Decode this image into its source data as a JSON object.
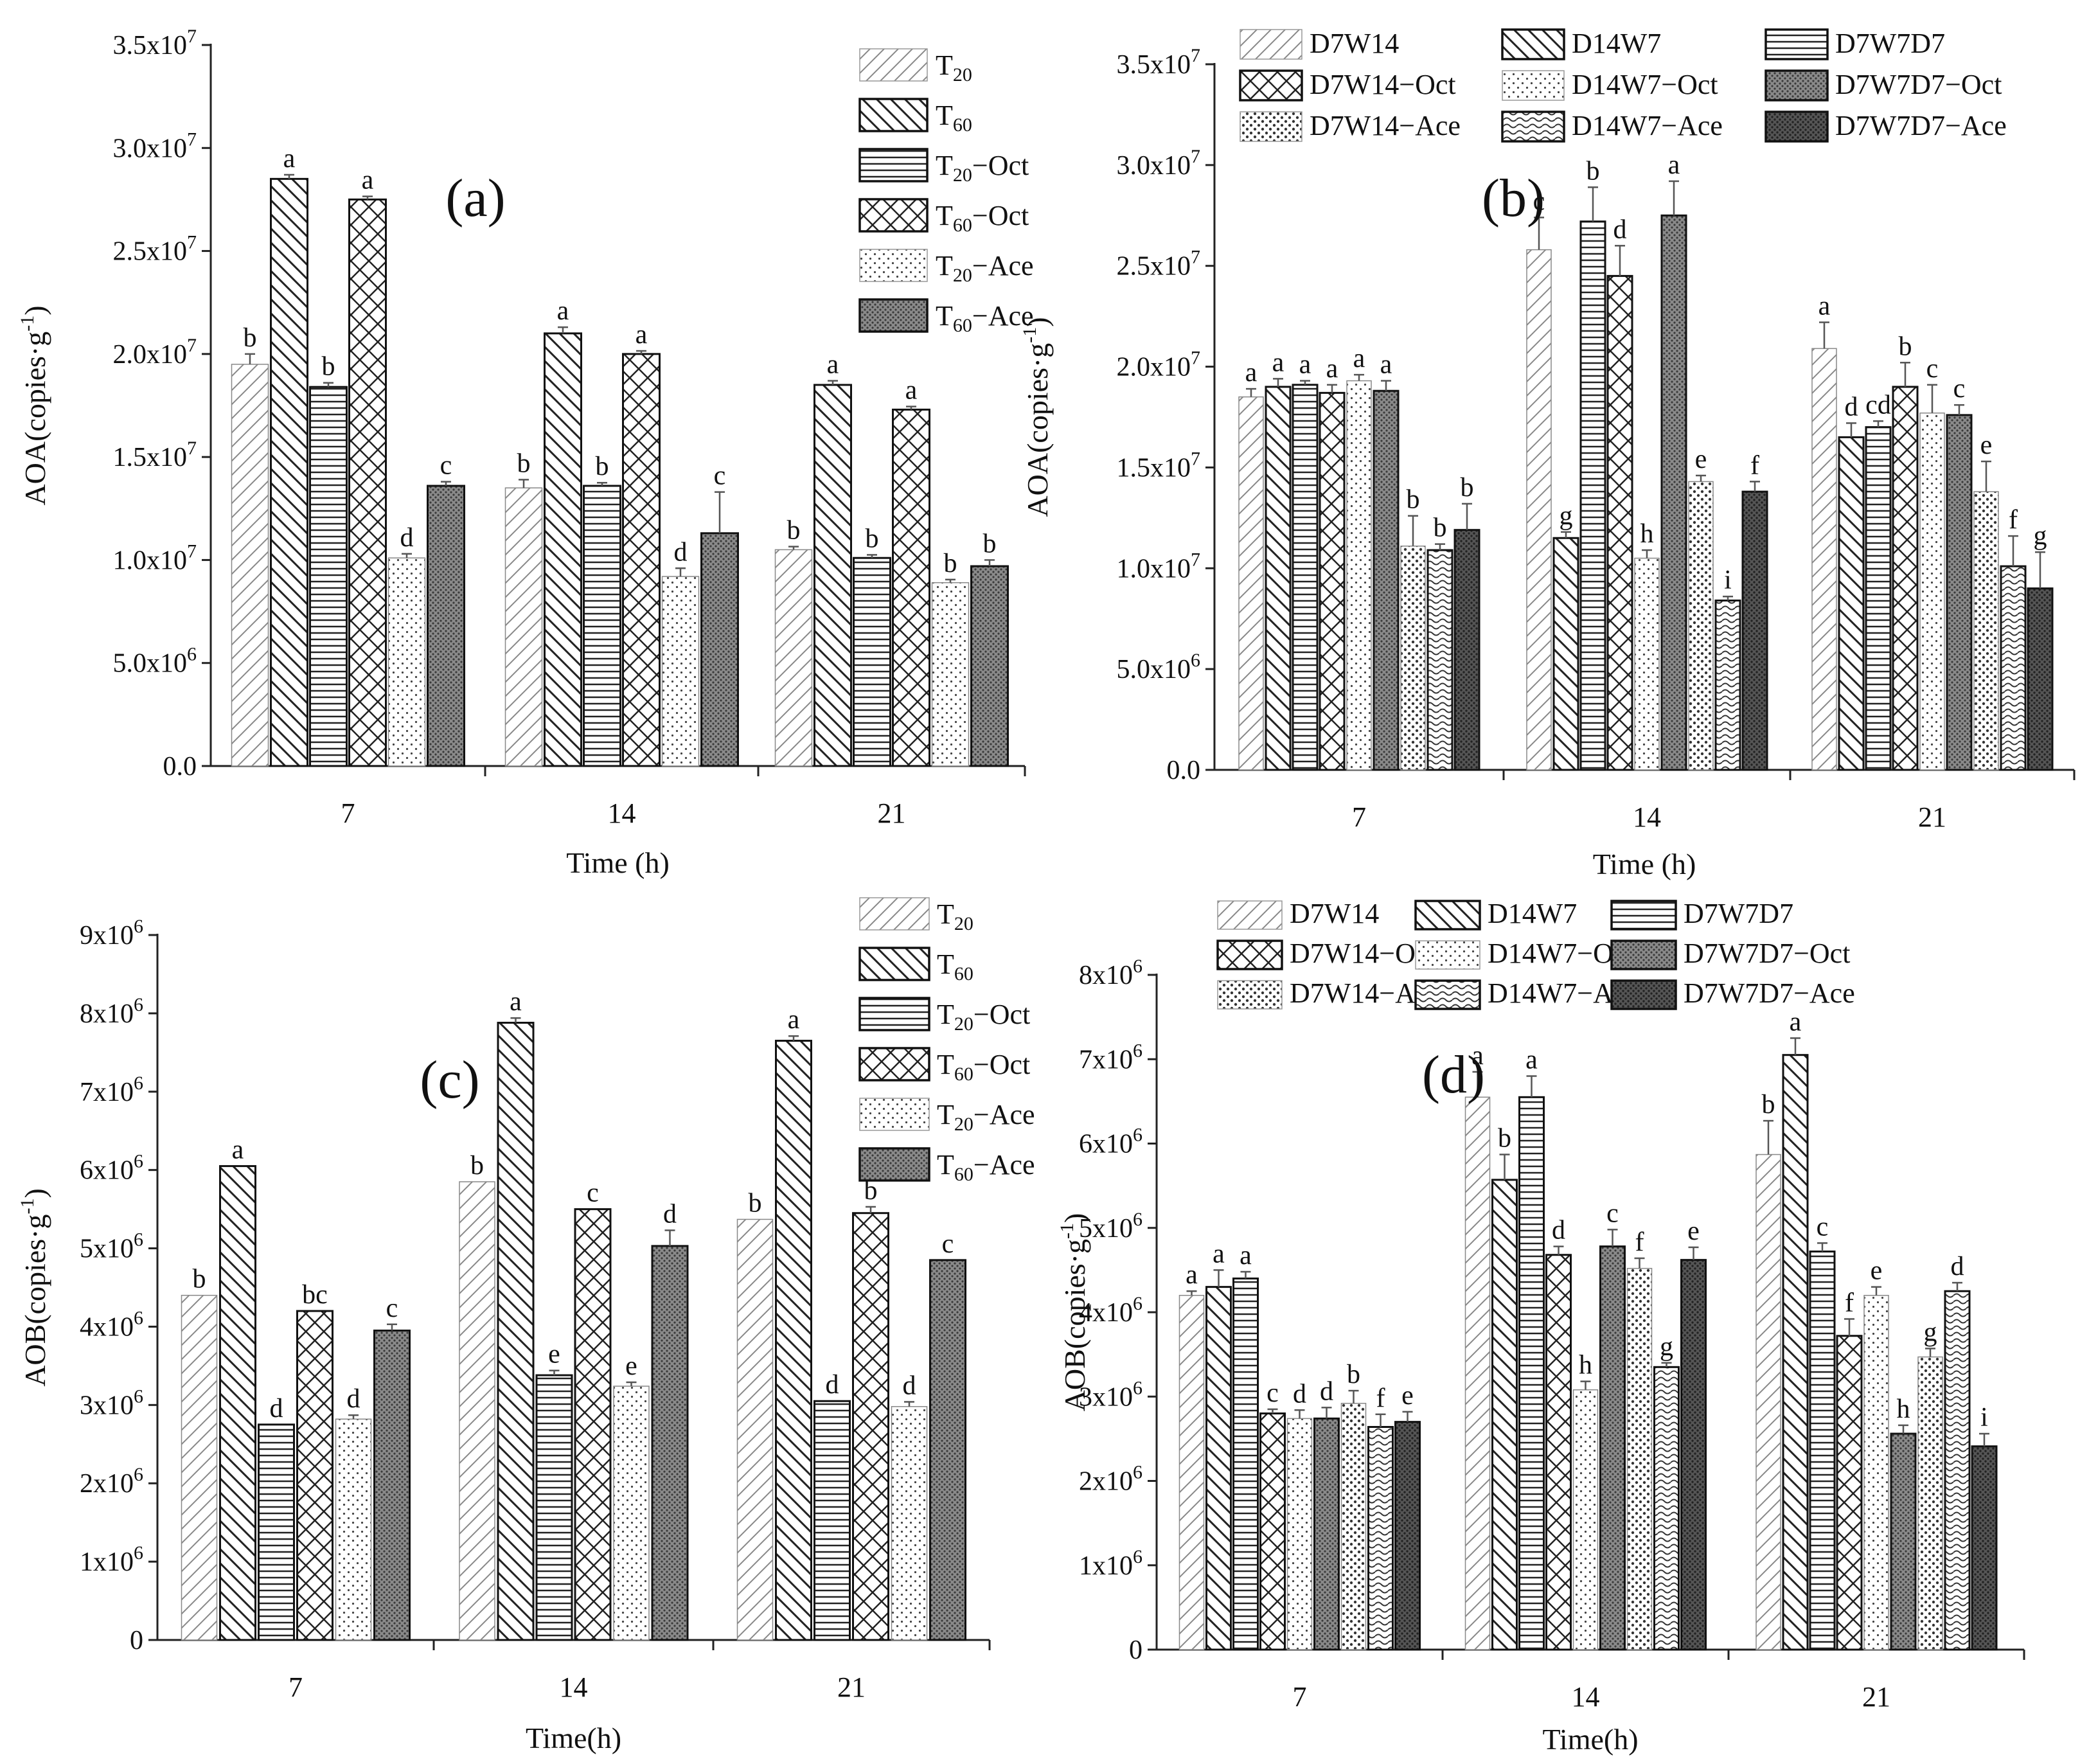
{
  "chart_data": [
    {
      "id": "a",
      "type": "bar",
      "panel_label": "(a)",
      "xlabel": "Time (h)",
      "ylabel": "AOA(copies·g⁻¹)",
      "ylim": [
        0,
        35000000
      ],
      "yticks": [
        {
          "v": 0,
          "base": "0.0",
          "exp": ""
        },
        {
          "v": 5000000,
          "base": "5.0x10",
          "exp": "6"
        },
        {
          "v": 10000000,
          "base": "1.0x10",
          "exp": "7"
        },
        {
          "v": 15000000,
          "base": "1.5x10",
          "exp": "7"
        },
        {
          "v": 20000000,
          "base": "2.0x10",
          "exp": "7"
        },
        {
          "v": 25000000,
          "base": "2.5x10",
          "exp": "7"
        },
        {
          "v": 30000000,
          "base": "3.0x10",
          "exp": "7"
        },
        {
          "v": 35000000,
          "base": "3.5x10",
          "exp": "7"
        }
      ],
      "categories": [
        "7",
        "14",
        "21"
      ],
      "legend_position": "top-right",
      "series": [
        {
          "name": "T20",
          "label_base": "T",
          "label_sub": "20",
          "label_suffix": "",
          "pattern": "hatch-light",
          "values": [
            19500000,
            13500000,
            10500000
          ],
          "errors": [
            500000,
            400000,
            150000
          ],
          "letters": [
            "b",
            "b",
            "b"
          ]
        },
        {
          "name": "T60",
          "label_base": "T",
          "label_sub": "60",
          "label_suffix": "",
          "pattern": "back-diag",
          "values": [
            28500000,
            21000000,
            18500000
          ],
          "errors": [
            200000,
            300000,
            200000
          ],
          "letters": [
            "a",
            "a",
            "a"
          ]
        },
        {
          "name": "T20-Oct",
          "label_base": "T",
          "label_sub": "20",
          "label_suffix": "−Oct",
          "pattern": "horizontal",
          "values": [
            18400000,
            13600000,
            10100000
          ],
          "errors": [
            200000,
            150000,
            150000
          ],
          "letters": [
            "b",
            "b",
            "b"
          ]
        },
        {
          "name": "T60-Oct",
          "label_base": "T",
          "label_sub": "60",
          "label_suffix": "−Oct",
          "pattern": "crosshatch",
          "values": [
            27500000,
            20000000,
            17300000
          ],
          "errors": [
            150000,
            150000,
            150000
          ],
          "letters": [
            "a",
            "a",
            "a"
          ]
        },
        {
          "name": "T20-Ace",
          "label_base": "T",
          "label_sub": "20",
          "label_suffix": "−Ace",
          "pattern": "dots",
          "values": [
            10100000,
            9200000,
            8900000
          ],
          "errors": [
            200000,
            400000,
            150000
          ],
          "letters": [
            "d",
            "d",
            "b"
          ]
        },
        {
          "name": "T60-Ace",
          "label_base": "T",
          "label_sub": "60",
          "label_suffix": "−Ace",
          "pattern": "dense",
          "values": [
            13600000,
            11300000,
            9700000
          ],
          "errors": [
            200000,
            2000000,
            300000
          ],
          "letters": [
            "c",
            "c",
            "b"
          ]
        }
      ]
    },
    {
      "id": "b",
      "type": "bar",
      "panel_label": "(b)",
      "xlabel": "Time (h)",
      "ylabel": "AOA(copies·g⁻¹)",
      "ylim": [
        0,
        35000000
      ],
      "yticks": [
        {
          "v": 0,
          "base": "0.0",
          "exp": ""
        },
        {
          "v": 5000000,
          "base": "5.0x10",
          "exp": "6"
        },
        {
          "v": 10000000,
          "base": "1.0x10",
          "exp": "7"
        },
        {
          "v": 15000000,
          "base": "1.5x10",
          "exp": "7"
        },
        {
          "v": 20000000,
          "base": "2.0x10",
          "exp": "7"
        },
        {
          "v": 25000000,
          "base": "2.5x10",
          "exp": "7"
        },
        {
          "v": 30000000,
          "base": "3.0x10",
          "exp": "7"
        },
        {
          "v": 35000000,
          "base": "3.5x10",
          "exp": "7"
        }
      ],
      "categories": [
        "7",
        "14",
        "21"
      ],
      "legend_position": "top",
      "series": [
        {
          "name": "D7W14",
          "pattern": "hatch-light",
          "values": [
            18500000,
            25800000,
            20900000
          ],
          "errors": [
            400000,
            1600000,
            1300000
          ],
          "letters": [
            "a",
            "c",
            "a"
          ]
        },
        {
          "name": "D14W7",
          "pattern": "back-diag",
          "values": [
            19000000,
            11500000,
            16500000
          ],
          "errors": [
            400000,
            300000,
            700000
          ],
          "letters": [
            "a",
            "g",
            "d"
          ]
        },
        {
          "name": "D7W7D7",
          "pattern": "horizontal",
          "values": [
            19100000,
            27200000,
            17000000
          ],
          "errors": [
            200000,
            1700000,
            300000
          ],
          "letters": [
            "a",
            "b",
            "cd"
          ]
        },
        {
          "name": "D7W14-Oct",
          "pattern": "crosshatch",
          "values": [
            18700000,
            24500000,
            19000000
          ],
          "errors": [
            400000,
            1500000,
            1200000
          ],
          "letters": [
            "a",
            "d",
            "b"
          ]
        },
        {
          "name": "D14W7-Oct",
          "pattern": "dots",
          "values": [
            19300000,
            10500000,
            17700000
          ],
          "errors": [
            300000,
            400000,
            1400000
          ],
          "letters": [
            "a",
            "h",
            "c"
          ]
        },
        {
          "name": "D7W7D7-Oct",
          "pattern": "dense",
          "values": [
            18800000,
            27500000,
            17600000
          ],
          "errors": [
            500000,
            1700000,
            500000
          ],
          "letters": [
            "a",
            "a",
            "c"
          ]
        },
        {
          "name": "D7W14-Ace",
          "pattern": "dots-coarse",
          "values": [
            11100000,
            14300000,
            13800000
          ],
          "errors": [
            1500000,
            300000,
            1500000
          ],
          "letters": [
            "b",
            "e",
            "e"
          ]
        },
        {
          "name": "D14W7-Ace",
          "pattern": "waves",
          "values": [
            10900000,
            8400000,
            10100000
          ],
          "errors": [
            300000,
            200000,
            1500000
          ],
          "letters": [
            "b",
            "i",
            "f"
          ]
        },
        {
          "name": "D7W7D7-Ace",
          "pattern": "dark",
          "values": [
            11900000,
            13800000,
            9000000
          ],
          "errors": [
            1300000,
            500000,
            1800000
          ],
          "letters": [
            "b",
            "f",
            "g"
          ]
        }
      ]
    },
    {
      "id": "c",
      "type": "bar",
      "panel_label": "(c)",
      "xlabel": "Time(h)",
      "ylabel": "AOB(copies·g⁻¹)",
      "ylim": [
        0,
        9000000
      ],
      "yticks": [
        {
          "v": 0,
          "base": "0",
          "exp": ""
        },
        {
          "v": 1000000,
          "base": "1x10",
          "exp": "6"
        },
        {
          "v": 2000000,
          "base": "2x10",
          "exp": "6"
        },
        {
          "v": 3000000,
          "base": "3x10",
          "exp": "6"
        },
        {
          "v": 4000000,
          "base": "4x10",
          "exp": "6"
        },
        {
          "v": 5000000,
          "base": "5x10",
          "exp": "6"
        },
        {
          "v": 6000000,
          "base": "6x10",
          "exp": "6"
        },
        {
          "v": 7000000,
          "base": "7x10",
          "exp": "6"
        },
        {
          "v": 8000000,
          "base": "8x10",
          "exp": "6"
        },
        {
          "v": 9000000,
          "base": "9x10",
          "exp": "6"
        }
      ],
      "categories": [
        "7",
        "14",
        "21"
      ],
      "legend_position": "top-right",
      "series": [
        {
          "name": "T20",
          "label_base": "T",
          "label_sub": "20",
          "label_suffix": "",
          "pattern": "hatch-light",
          "values": [
            4400000,
            5850000,
            5370000
          ],
          "errors": [
            0,
            0,
            0
          ],
          "letters": [
            "b",
            "b",
            "b"
          ]
        },
        {
          "name": "T60",
          "label_base": "T",
          "label_sub": "60",
          "label_suffix": "",
          "pattern": "back-diag",
          "values": [
            6050000,
            7880000,
            7650000
          ],
          "errors": [
            0,
            60000,
            60000
          ],
          "letters": [
            "a",
            "a",
            "a"
          ]
        },
        {
          "name": "T20-Oct",
          "label_base": "T",
          "label_sub": "20",
          "label_suffix": "−Oct",
          "pattern": "horizontal",
          "values": [
            2750000,
            3380000,
            3050000
          ],
          "errors": [
            0,
            60000,
            0
          ],
          "letters": [
            "d",
            "e",
            "d"
          ]
        },
        {
          "name": "T60-Oct",
          "label_base": "T",
          "label_sub": "60",
          "label_suffix": "−Oct",
          "pattern": "crosshatch",
          "values": [
            4200000,
            5500000,
            5450000
          ],
          "errors": [
            0,
            0,
            80000
          ],
          "letters": [
            "bc",
            "c",
            "b"
          ]
        },
        {
          "name": "T20-Ace",
          "label_base": "T",
          "label_sub": "20",
          "label_suffix": "−Ace",
          "pattern": "dots",
          "values": [
            2820000,
            3240000,
            2980000
          ],
          "errors": [
            50000,
            50000,
            60000
          ],
          "letters": [
            "d",
            "e",
            "d"
          ]
        },
        {
          "name": "T60-Ace",
          "label_base": "T",
          "label_sub": "60",
          "label_suffix": "−Ace",
          "pattern": "dense",
          "values": [
            3950000,
            5030000,
            4850000
          ],
          "errors": [
            80000,
            200000,
            0
          ],
          "letters": [
            "c",
            "d",
            "c"
          ]
        }
      ]
    },
    {
      "id": "d",
      "type": "bar",
      "panel_label": "(d)",
      "xlabel": "Time(h)",
      "ylabel": "AOB(copies·g⁻¹)",
      "ylim": [
        0,
        8000000
      ],
      "yticks": [
        {
          "v": 0,
          "base": "0",
          "exp": ""
        },
        {
          "v": 1000000,
          "base": "1x10",
          "exp": "6"
        },
        {
          "v": 2000000,
          "base": "2x10",
          "exp": "6"
        },
        {
          "v": 3000000,
          "base": "3x10",
          "exp": "6"
        },
        {
          "v": 4000000,
          "base": "4x10",
          "exp": "6"
        },
        {
          "v": 5000000,
          "base": "5x10",
          "exp": "6"
        },
        {
          "v": 6000000,
          "base": "6x10",
          "exp": "6"
        },
        {
          "v": 7000000,
          "base": "7x10",
          "exp": "6"
        },
        {
          "v": 8000000,
          "base": "8x10",
          "exp": "6"
        }
      ],
      "categories": [
        "7",
        "14",
        "21"
      ],
      "legend_position": "top",
      "series": [
        {
          "name": "D7W14",
          "pattern": "hatch-light",
          "values": [
            4200000,
            6550000,
            5870000
          ],
          "errors": [
            50000,
            300000,
            400000
          ],
          "letters": [
            "a",
            "a",
            "b"
          ]
        },
        {
          "name": "D14W7",
          "pattern": "back-diag",
          "values": [
            4300000,
            5570000,
            7050000
          ],
          "errors": [
            200000,
            300000,
            200000
          ],
          "letters": [
            "a",
            "b",
            "a"
          ]
        },
        {
          "name": "D7W7D7",
          "pattern": "horizontal",
          "values": [
            4400000,
            6550000,
            4720000
          ],
          "errors": [
            80000,
            250000,
            100000
          ],
          "letters": [
            "a",
            "a",
            "c"
          ]
        },
        {
          "name": "D7W14-Oct",
          "pattern": "crosshatch",
          "values": [
            2800000,
            4680000,
            3720000
          ],
          "errors": [
            50000,
            100000,
            200000
          ],
          "letters": [
            "c",
            "d",
            "f"
          ]
        },
        {
          "name": "D14W7-Oct",
          "pattern": "dots",
          "values": [
            2740000,
            3080000,
            4200000
          ],
          "errors": [
            100000,
            100000,
            100000
          ],
          "letters": [
            "d",
            "h",
            "e"
          ]
        },
        {
          "name": "D7W7D7-Oct",
          "pattern": "dense",
          "values": [
            2740000,
            4780000,
            2560000
          ],
          "errors": [
            130000,
            200000,
            100000
          ],
          "letters": [
            "d",
            "c",
            "h"
          ]
        },
        {
          "name": "D7W14-Ace",
          "pattern": "dots-coarse",
          "values": [
            2920000,
            4520000,
            3470000
          ],
          "errors": [
            150000,
            120000,
            100000
          ],
          "letters": [
            "b",
            "f",
            "g"
          ]
        },
        {
          "name": "D14W7-Ace",
          "pattern": "waves",
          "values": [
            2640000,
            3350000,
            4250000
          ],
          "errors": [
            150000,
            50000,
            100000
          ],
          "letters": [
            "f",
            "g",
            "d"
          ]
        },
        {
          "name": "D7W7D7-Ace",
          "pattern": "dark",
          "values": [
            2700000,
            4620000,
            2410000
          ],
          "errors": [
            120000,
            150000,
            150000
          ],
          "letters": [
            "e",
            "e",
            "i"
          ]
        }
      ]
    }
  ]
}
